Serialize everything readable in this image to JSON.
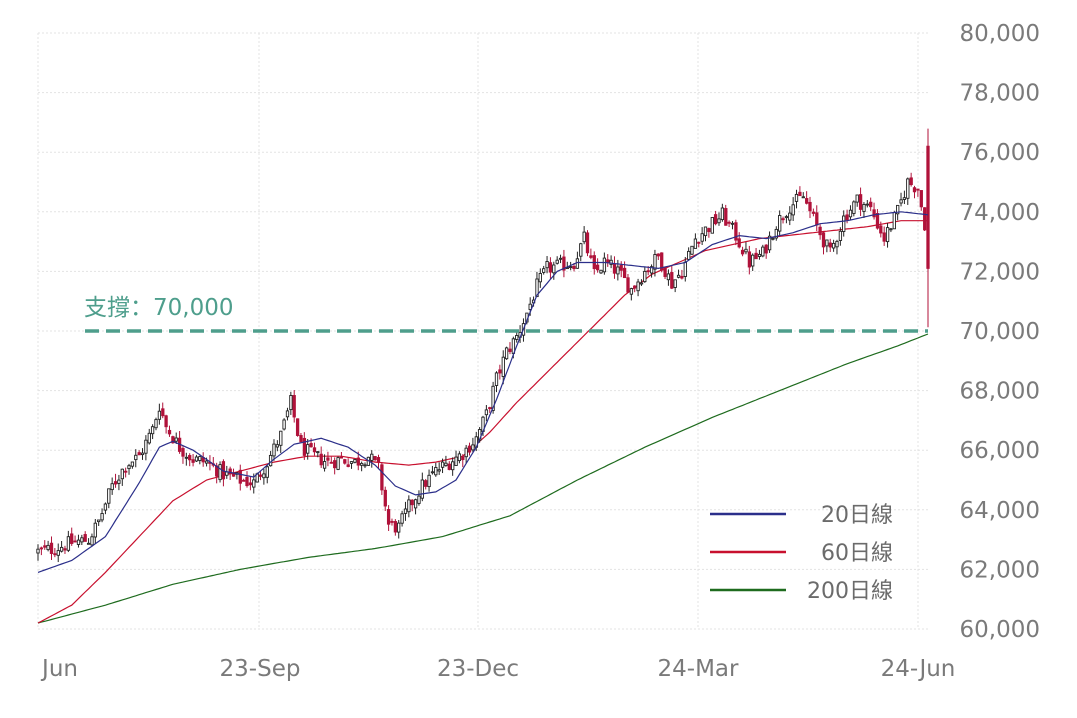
{
  "chart_data": {
    "type": "candlestick",
    "grid": true,
    "ylim": [
      60000,
      80000
    ],
    "y_ticks": [
      "80,000",
      "78,000",
      "76,000",
      "74,000",
      "72,000",
      "70,000",
      "68,000",
      "66,000",
      "64,000",
      "62,000",
      "60,000"
    ],
    "x_ticks": [
      "Jun",
      "23-Sep",
      "23-Dec",
      "24-Mar",
      "24-Jun"
    ],
    "support": {
      "label": "支撐：70,000",
      "value": 70000,
      "color": "#4e9e8c"
    },
    "legend": [
      {
        "label": "20日線",
        "color": "#2b2f8a"
      },
      {
        "label": "60日線",
        "color": "#c8102e"
      },
      {
        "label": "200日線",
        "color": "#1e6b1e"
      }
    ],
    "series_close_anchors": [
      [
        0,
        62600
      ],
      [
        5,
        62700
      ],
      [
        10,
        62900
      ],
      [
        15,
        63000
      ],
      [
        18,
        63600
      ],
      [
        22,
        64800
      ],
      [
        26,
        65500
      ],
      [
        30,
        65800
      ],
      [
        34,
        66700
      ],
      [
        36,
        67500
      ],
      [
        38,
        66800
      ],
      [
        42,
        66100
      ],
      [
        46,
        65700
      ],
      [
        50,
        65600
      ],
      [
        55,
        65200
      ],
      [
        60,
        65000
      ],
      [
        64,
        64900
      ],
      [
        68,
        65600
      ],
      [
        72,
        66500
      ],
      [
        75,
        67600
      ],
      [
        78,
        66100
      ],
      [
        82,
        65800
      ],
      [
        86,
        65600
      ],
      [
        90,
        65700
      ],
      [
        94,
        65600
      ],
      [
        98,
        65800
      ],
      [
        101,
        65400
      ],
      [
        104,
        63500
      ],
      [
        107,
        63400
      ],
      [
        110,
        64100
      ],
      [
        114,
        64800
      ],
      [
        118,
        65300
      ],
      [
        122,
        65600
      ],
      [
        126,
        65900
      ],
      [
        130,
        66400
      ],
      [
        133,
        67200
      ],
      [
        136,
        68400
      ],
      [
        139,
        69300
      ],
      [
        142,
        69800
      ],
      [
        145,
        70600
      ],
      [
        148,
        71500
      ],
      [
        151,
        72100
      ],
      [
        155,
        72200
      ],
      [
        159,
        72300
      ],
      [
        162,
        73100
      ],
      [
        165,
        71900
      ],
      [
        168,
        72300
      ],
      [
        172,
        72000
      ],
      [
        176,
        71400
      ],
      [
        180,
        72000
      ],
      [
        184,
        72500
      ],
      [
        188,
        71600
      ],
      [
        191,
        72000
      ],
      [
        195,
        73100
      ],
      [
        199,
        73500
      ],
      [
        203,
        73900
      ],
      [
        207,
        73200
      ],
      [
        211,
        72300
      ],
      [
        215,
        72600
      ],
      [
        219,
        73600
      ],
      [
        223,
        74200
      ],
      [
        227,
        74500
      ],
      [
        231,
        73500
      ],
      [
        235,
        72600
      ],
      [
        239,
        73800
      ],
      [
        243,
        74400
      ],
      [
        247,
        74100
      ],
      [
        251,
        73100
      ],
      [
        255,
        74000
      ],
      [
        258,
        75000
      ],
      [
        261,
        74800
      ],
      [
        263,
        73600
      ],
      [
        264,
        72000
      ]
    ],
    "ma20_anchors": [
      [
        0,
        61900
      ],
      [
        10,
        62300
      ],
      [
        20,
        63100
      ],
      [
        30,
        64900
      ],
      [
        36,
        66100
      ],
      [
        40,
        66300
      ],
      [
        46,
        66000
      ],
      [
        55,
        65300
      ],
      [
        64,
        65100
      ],
      [
        70,
        65700
      ],
      [
        76,
        66200
      ],
      [
        84,
        66400
      ],
      [
        92,
        66100
      ],
      [
        100,
        65500
      ],
      [
        106,
        64800
      ],
      [
        112,
        64500
      ],
      [
        118,
        64600
      ],
      [
        124,
        65000
      ],
      [
        130,
        66100
      ],
      [
        136,
        67700
      ],
      [
        142,
        69500
      ],
      [
        148,
        71200
      ],
      [
        154,
        72000
      ],
      [
        160,
        72300
      ],
      [
        168,
        72300
      ],
      [
        176,
        72200
      ],
      [
        184,
        72100
      ],
      [
        192,
        72300
      ],
      [
        200,
        72900
      ],
      [
        208,
        73200
      ],
      [
        216,
        73100
      ],
      [
        224,
        73300
      ],
      [
        232,
        73600
      ],
      [
        240,
        73700
      ],
      [
        248,
        73900
      ],
      [
        256,
        74000
      ],
      [
        264,
        73900
      ]
    ],
    "ma60_anchors": [
      [
        0,
        60200
      ],
      [
        10,
        60800
      ],
      [
        20,
        61900
      ],
      [
        30,
        63100
      ],
      [
        40,
        64300
      ],
      [
        50,
        65000
      ],
      [
        60,
        65300
      ],
      [
        70,
        65600
      ],
      [
        80,
        65800
      ],
      [
        90,
        65800
      ],
      [
        100,
        65600
      ],
      [
        110,
        65500
      ],
      [
        118,
        65600
      ],
      [
        126,
        65800
      ],
      [
        134,
        66600
      ],
      [
        142,
        67600
      ],
      [
        150,
        68500
      ],
      [
        158,
        69400
      ],
      [
        166,
        70300
      ],
      [
        174,
        71200
      ],
      [
        182,
        71900
      ],
      [
        190,
        72300
      ],
      [
        198,
        72700
      ],
      [
        206,
        72900
      ],
      [
        214,
        73100
      ],
      [
        222,
        73200
      ],
      [
        230,
        73300
      ],
      [
        238,
        73400
      ],
      [
        246,
        73500
      ],
      [
        256,
        73700
      ],
      [
        264,
        73700
      ]
    ],
    "ma200_anchors": [
      [
        0,
        60200
      ],
      [
        20,
        60800
      ],
      [
        40,
        61500
      ],
      [
        60,
        62000
      ],
      [
        80,
        62400
      ],
      [
        100,
        62700
      ],
      [
        120,
        63100
      ],
      [
        140,
        63800
      ],
      [
        160,
        65000
      ],
      [
        180,
        66100
      ],
      [
        200,
        67100
      ],
      [
        220,
        68000
      ],
      [
        240,
        68900
      ],
      [
        255,
        69500
      ],
      [
        264,
        69900
      ]
    ]
  }
}
